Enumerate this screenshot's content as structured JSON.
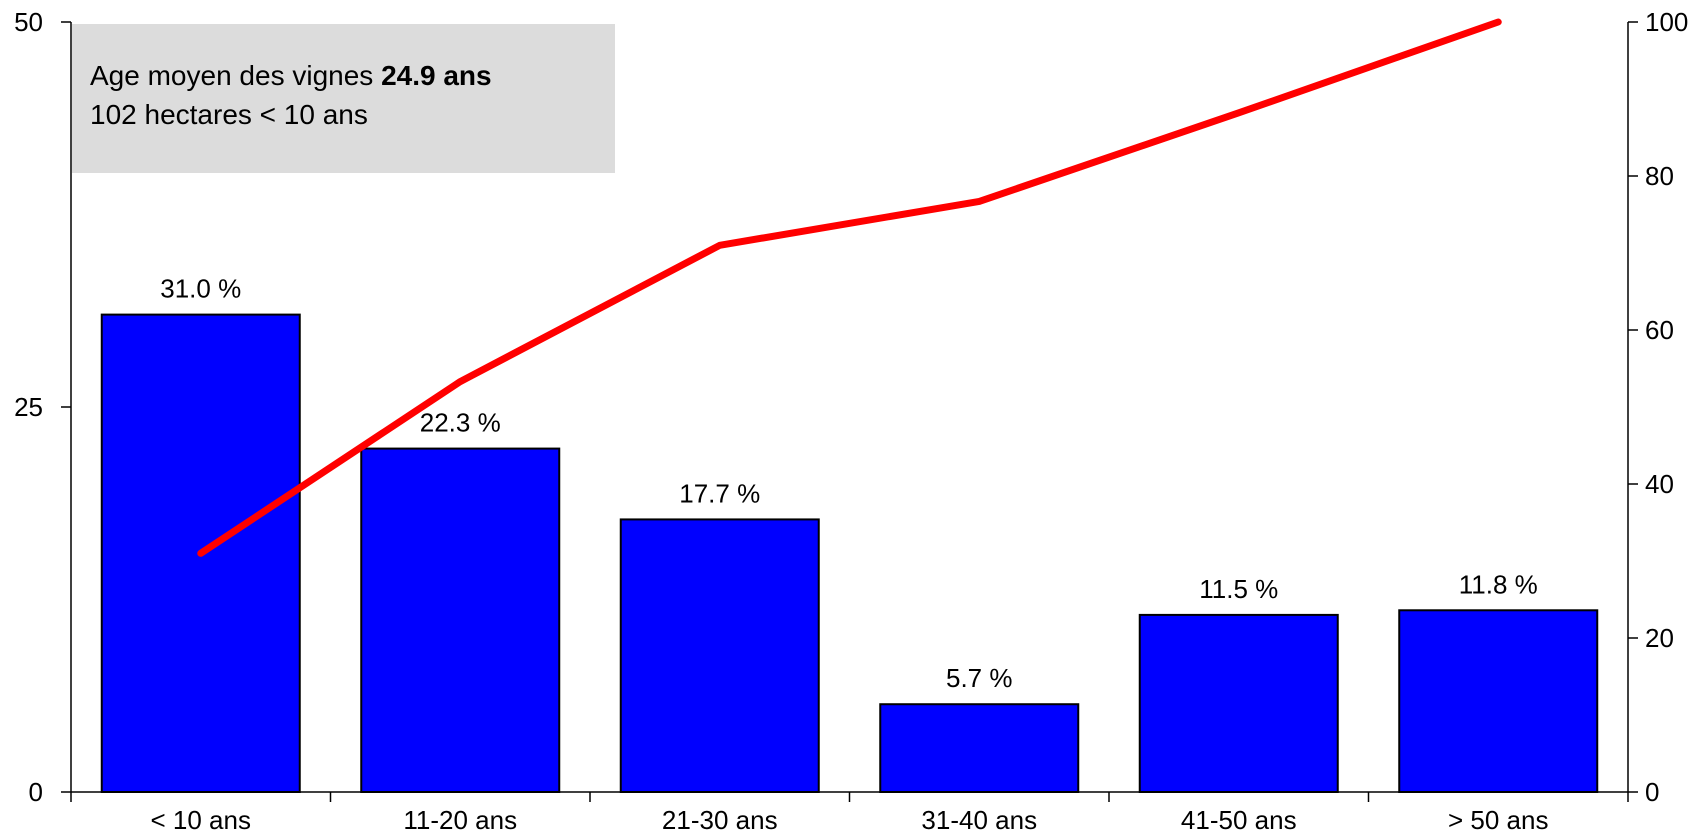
{
  "chart_data": {
    "type": "bar",
    "title": "",
    "xlabel": "",
    "ylabel": "",
    "categories": [
      "< 10 ans",
      "11-20 ans",
      "21-30 ans",
      "31-40 ans",
      "41-50 ans",
      "> 50 ans"
    ],
    "values": [
      31.0,
      22.3,
      17.7,
      5.7,
      11.5,
      11.8
    ],
    "value_labels": [
      "31.0 %",
      "22.3 %",
      "17.7 %",
      "5.7 %",
      "11.5 %",
      "11.8 %"
    ],
    "ylim": [
      0,
      50
    ],
    "yticks": [
      "0",
      "25",
      "50"
    ],
    "bar_color": "#0000ff",
    "line_series": {
      "axis": "secondary",
      "values": [
        31.0,
        53.3,
        71.0,
        76.7,
        88.2,
        100.0
      ],
      "color": "#ff0000"
    },
    "y2lim": [
      0,
      100
    ],
    "y2ticks": [
      "0",
      "20",
      "40",
      "60",
      "80",
      "100"
    ],
    "grid": false,
    "legend": "none"
  },
  "info_box": {
    "line1_prefix": "Age moyen des vignes ",
    "line1_bold": "24.9 ans",
    "line2": "102 hectares < 10 ans",
    "background": "#dcdcdc"
  }
}
